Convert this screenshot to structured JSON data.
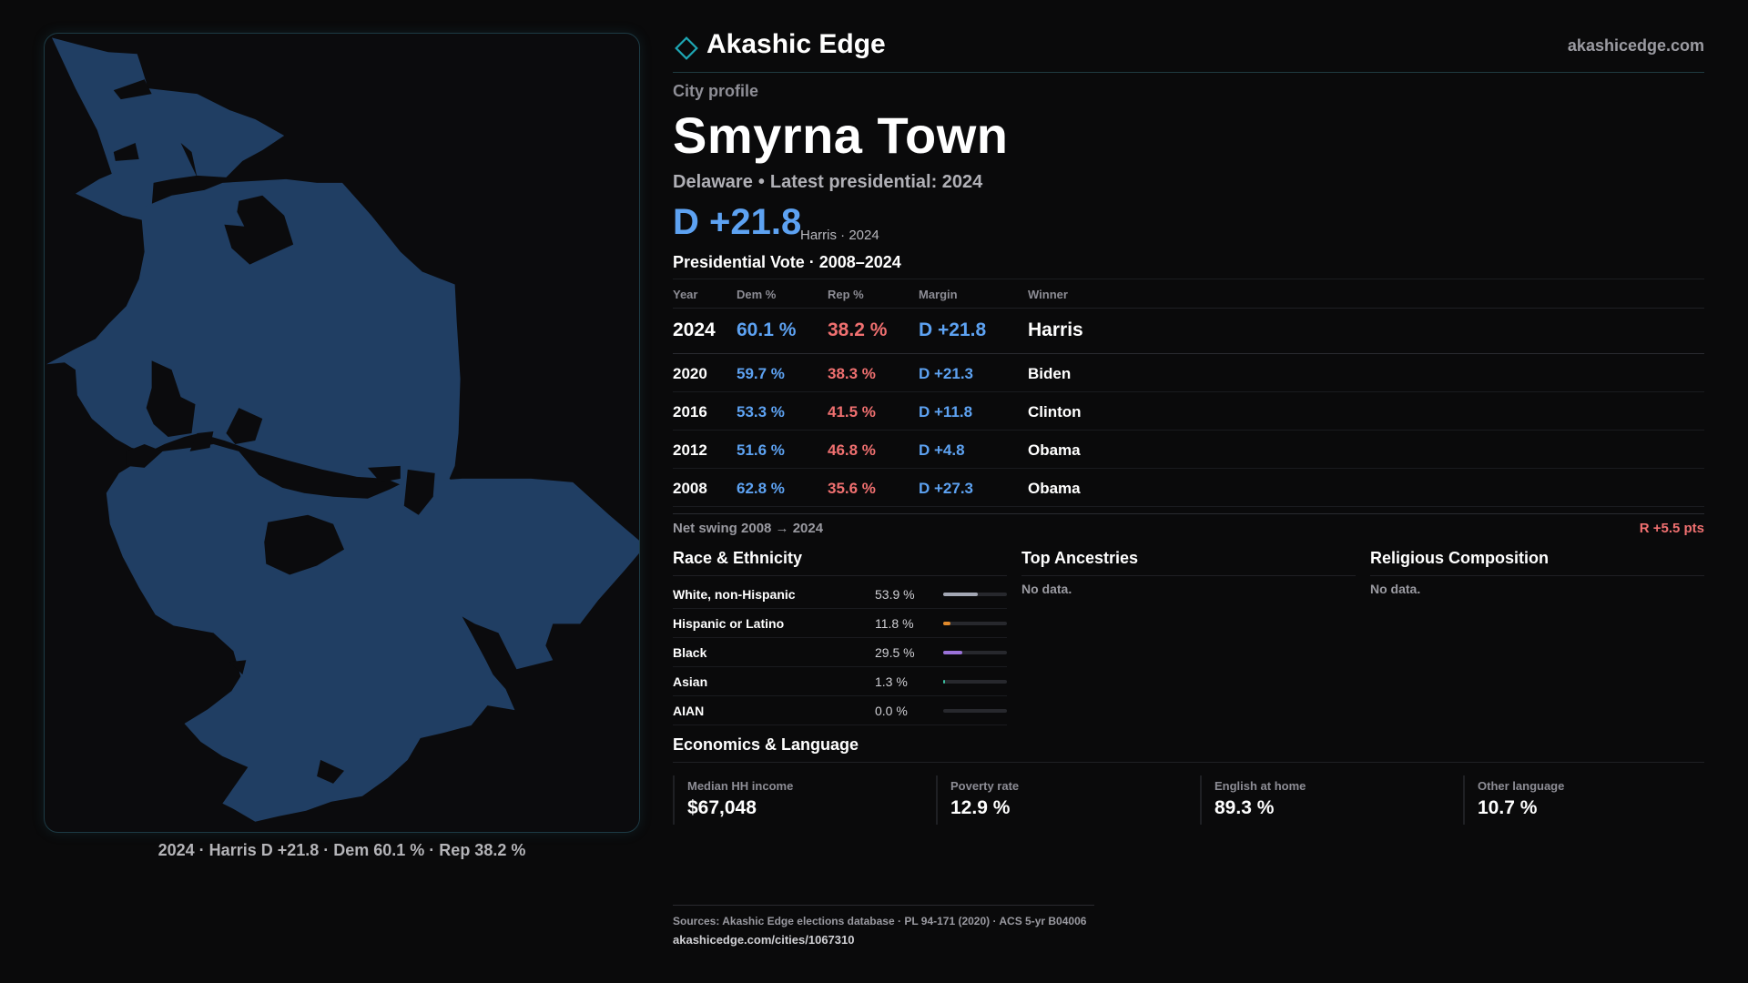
{
  "brand": {
    "name": "Akashic Edge",
    "url": "akashicedge.com",
    "accent": "#1ea6b3"
  },
  "map": {
    "fill_color": "#203e63",
    "caption": "2024 · Harris D +21.8 · Dem 60.1 % · Rep 38.2 %"
  },
  "profile": {
    "kicker": "City profile",
    "city": "Smyrna Town",
    "state": "Delaware",
    "latest": "Latest presidential: 2024",
    "margin": "D +21.8",
    "winner_year": "Harris · 2024"
  },
  "vote": {
    "title": "Presidential Vote · 2008–2024",
    "headers": {
      "year": "Year",
      "dem": "Dem %",
      "rep": "Rep %",
      "margin": "Margin",
      "winner": "Winner"
    },
    "rows": [
      {
        "year": "2024",
        "dem": "60.1 %",
        "rep": "38.2 %",
        "margin": "D +21.8",
        "winner": "Harris"
      },
      {
        "year": "2020",
        "dem": "59.7 %",
        "rep": "38.3 %",
        "margin": "D +21.3",
        "winner": "Biden"
      },
      {
        "year": "2016",
        "dem": "53.3 %",
        "rep": "41.5 %",
        "margin": "D +11.8",
        "winner": "Clinton"
      },
      {
        "year": "2012",
        "dem": "51.6 %",
        "rep": "46.8 %",
        "margin": "D +4.8",
        "winner": "Obama"
      },
      {
        "year": "2008",
        "dem": "62.8 %",
        "rep": "35.6 %",
        "margin": "D +27.3",
        "winner": "Obama"
      }
    ],
    "dem_color": "#5da2f2",
    "rep_color": "#f07070"
  },
  "swing": {
    "label": "Net swing 2008 → 2024",
    "value": "R +5.5 pts"
  },
  "race": {
    "title": "Race & Ethnicity",
    "rows": [
      {
        "label": "White, non-Hispanic",
        "pct": "53.9 %",
        "share": 0.539,
        "color": "#a3a7b4"
      },
      {
        "label": "Hispanic or Latino",
        "pct": "11.8 %",
        "share": 0.118,
        "color": "#e08a2c"
      },
      {
        "label": "Black",
        "pct": "29.5 %",
        "share": 0.295,
        "color": "#9a72d8"
      },
      {
        "label": "Asian",
        "pct": "1.3 %",
        "share": 0.013,
        "color": "#3bbfa0"
      },
      {
        "label": "AIAN",
        "pct": "0.0 %",
        "share": 0.0,
        "color": "#5da2f2"
      }
    ]
  },
  "ancestries": {
    "title": "Top Ancestries",
    "empty": "No data."
  },
  "religion": {
    "title": "Religious Composition",
    "empty": "No data."
  },
  "economics": {
    "title": "Economics & Language",
    "cells": [
      {
        "label": "Median HH income",
        "value": "$67,048"
      },
      {
        "label": "Poverty rate",
        "value": "12.9 %"
      },
      {
        "label": "English at home",
        "value": "89.3 %"
      },
      {
        "label": "Other language",
        "value": "10.7 %"
      }
    ]
  },
  "footer": {
    "sources": "Sources: Akashic Edge elections database · PL 94-171 (2020) · ACS 5-yr B04006",
    "url": "akashicedge.com/cities/1067310"
  }
}
